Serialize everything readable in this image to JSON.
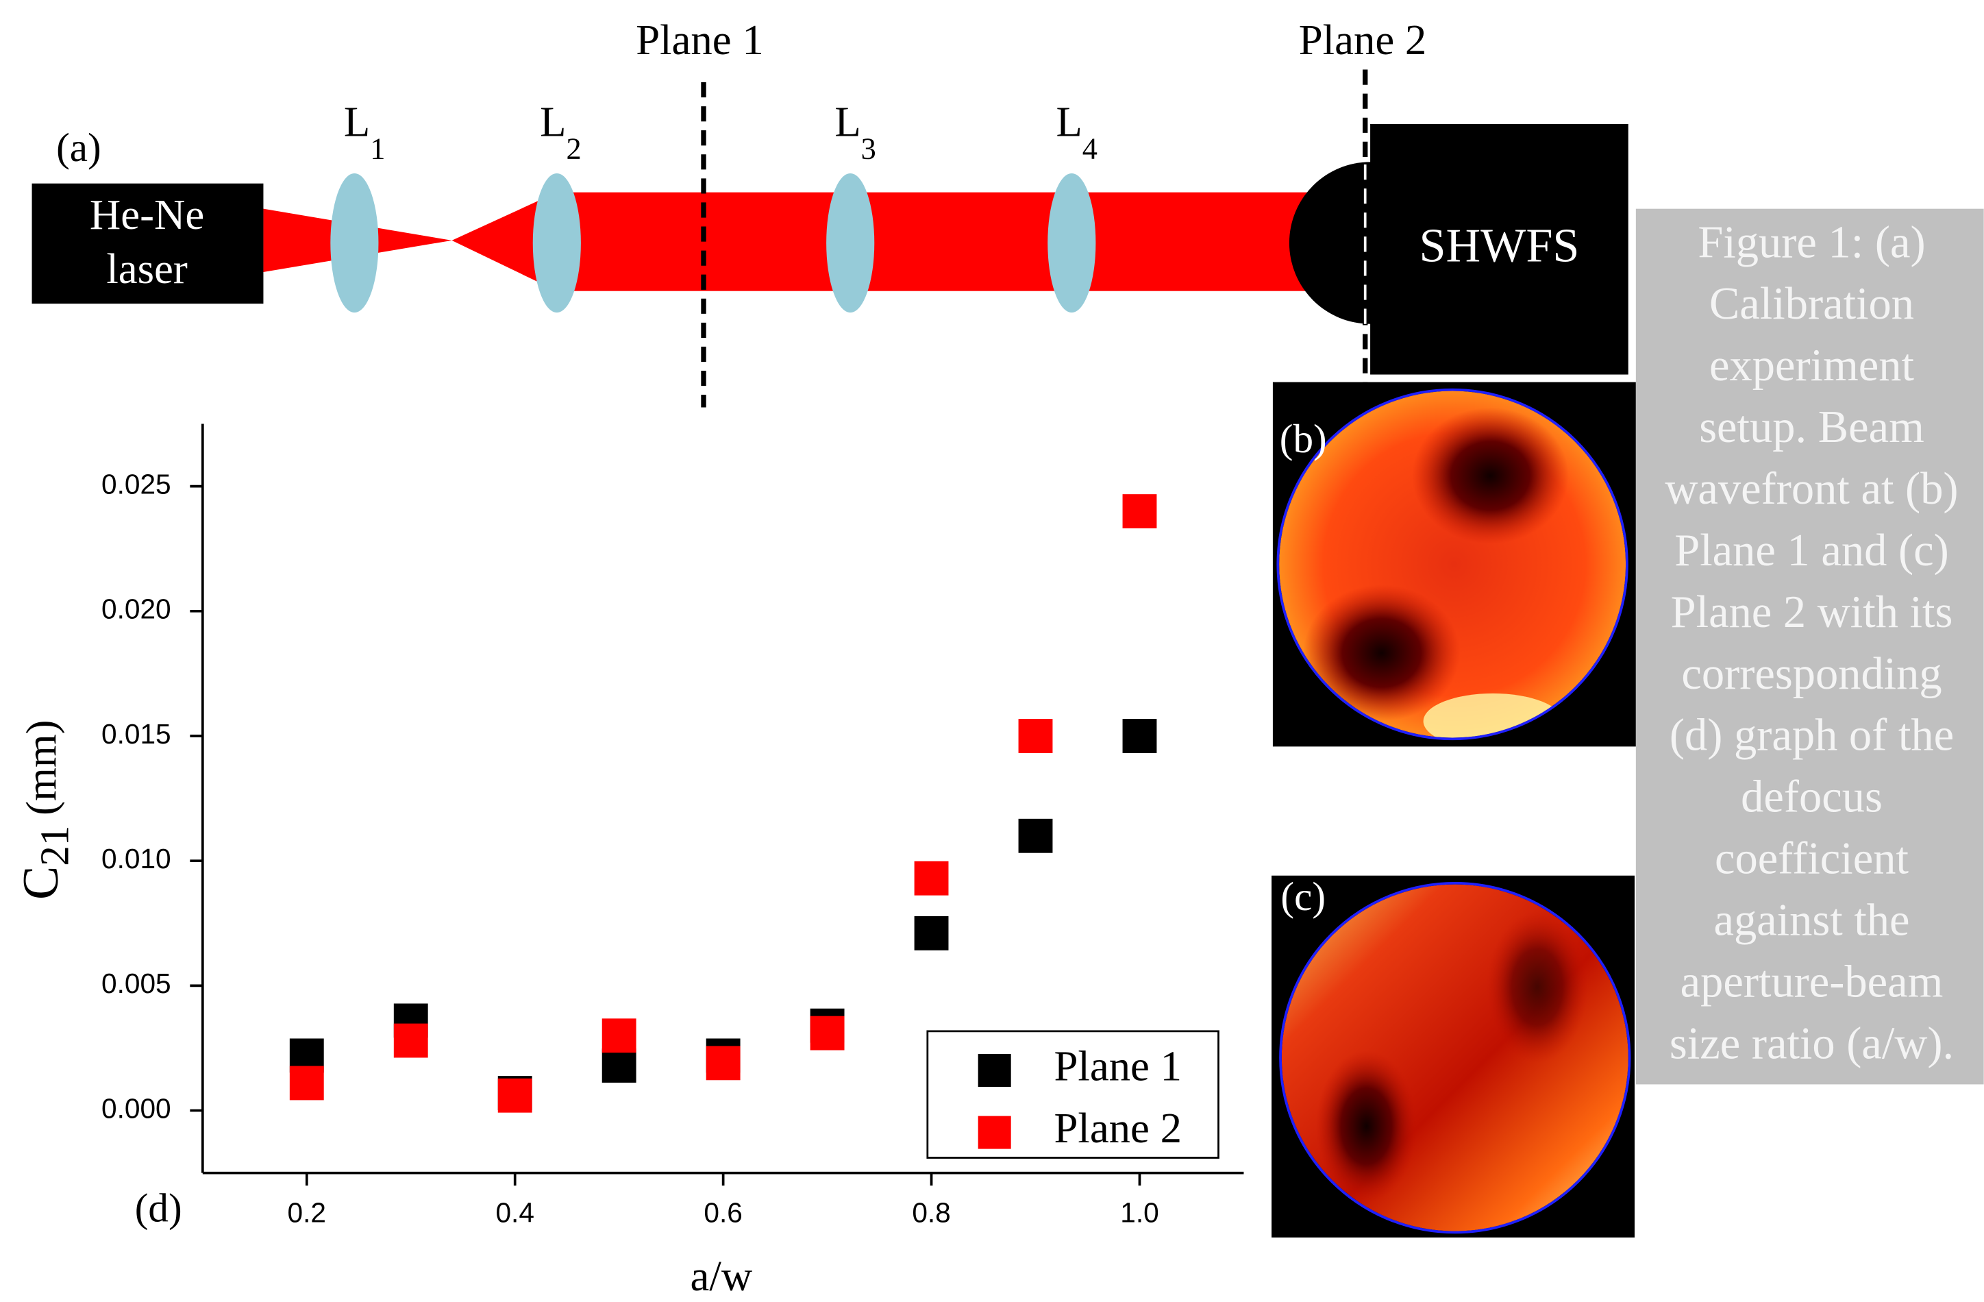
{
  "diagram": {
    "panel_label": "(a)",
    "plane1": "Plane 1",
    "plane2": "Plane 2",
    "laser": [
      "He-Ne",
      "laser"
    ],
    "lenses": [
      {
        "label": "L",
        "sub": "1"
      },
      {
        "label": "L",
        "sub": "2"
      },
      {
        "label": "L",
        "sub": "3"
      },
      {
        "label": "L",
        "sub": "4"
      }
    ],
    "detector": "SHWFS"
  },
  "wavefronts": {
    "b": "(b)",
    "c": "(c)"
  },
  "caption": [
    "Figure 1: (a)",
    "Calibration",
    "experiment",
    "setup. Beam",
    "wavefront at (b)",
    "Plane 1 and (c)",
    "Plane  2 with its",
    "corresponding",
    "(d) graph of the",
    "defocus",
    "coefficient",
    "against the",
    "aperture-beam",
    "size ratio (a/w)."
  ],
  "chart_data": {
    "type": "scatter",
    "panel_label": "(d)",
    "xlabel": "a/w",
    "ylabel": "C",
    "ylabel_sub": "21",
    "ylabel_unit": "(mm)",
    "x": [
      0.2,
      0.3,
      0.4,
      0.5,
      0.6,
      0.7,
      0.8,
      0.9,
      1.0
    ],
    "series": [
      {
        "name": "Plane 1",
        "color": "#000000",
        "values": [
          0.0022,
          0.0036,
          0.0007,
          0.0018,
          0.0022,
          0.0034,
          0.0071,
          0.011,
          0.015
        ]
      },
      {
        "name": "Plane 2",
        "color": "#ff0000",
        "values": [
          0.0011,
          0.0028,
          0.0006,
          0.003,
          0.0019,
          0.0031,
          0.0093,
          0.015,
          0.024
        ]
      }
    ],
    "xlim": [
      0.1,
      1.1
    ],
    "ylim": [
      -0.0025,
      0.0275
    ],
    "xticks": [
      0.2,
      0.4,
      0.6,
      0.8,
      {
        "value": 1,
        "label": "1.0"
      }
    ],
    "yticks": [
      {
        "value": 0,
        "label": "0.000"
      },
      {
        "value": 0.005,
        "label": "0.005"
      },
      {
        "value": 0.01,
        "label": "0.010"
      },
      {
        "value": 0.015,
        "label": "0.015"
      },
      {
        "value": 0.02,
        "label": "0.020"
      },
      {
        "value": 0.025,
        "label": "0.025"
      }
    ],
    "legend": "bottom-right"
  }
}
